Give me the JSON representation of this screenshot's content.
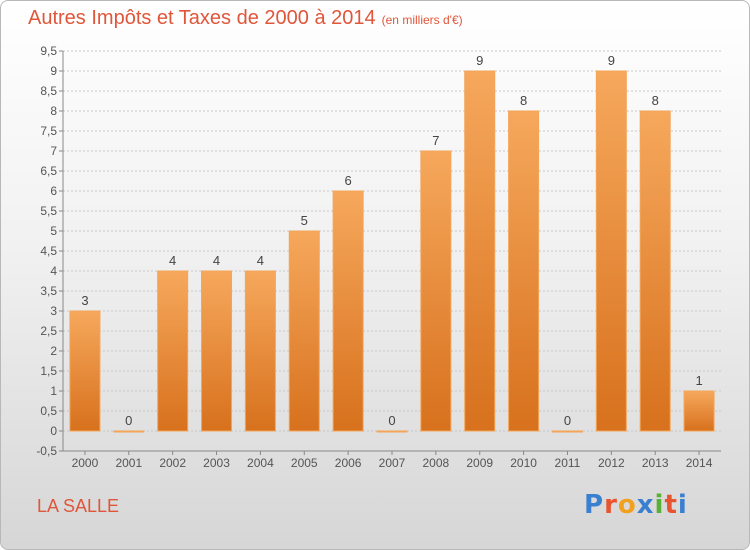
{
  "header": {
    "title": "Autres Impôts et Taxes de 2000 à 2014",
    "unit": "(en milliers d'€)"
  },
  "footer": {
    "place": "LA SALLE",
    "logo": "Proxiti",
    "logo_colors": [
      "#3b7fd0",
      "#e8542f",
      "#f2a11f",
      "#3b7fd0",
      "#58b035",
      "#e8542f",
      "#3b7fd0"
    ]
  },
  "chart_data": {
    "type": "bar",
    "categories": [
      "2000",
      "2001",
      "2002",
      "2003",
      "2004",
      "2005",
      "2006",
      "2007",
      "2008",
      "2009",
      "2010",
      "2011",
      "2012",
      "2013",
      "2014"
    ],
    "values": [
      3,
      0,
      4,
      4,
      4,
      5,
      6,
      0,
      7,
      9,
      8,
      0,
      9,
      8,
      1
    ],
    "title": "Autres Impôts et Taxes de 2000 à 2014",
    "ylabel": "",
    "xlabel": "",
    "ylim": [
      -0.5,
      9.5
    ],
    "yticks": [
      "-0,5",
      "0",
      "0,5",
      "1",
      "1,5",
      "2",
      "2,5",
      "3",
      "3,5",
      "4",
      "4,5",
      "5",
      "5,5",
      "6",
      "6,5",
      "7",
      "7,5",
      "8",
      "8,5",
      "9",
      "9,5"
    ],
    "grid": true,
    "bar_color": "#f08a2a"
  }
}
